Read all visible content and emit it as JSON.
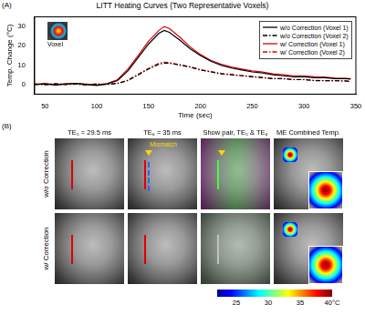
{
  "chart_data": {
    "type": "line",
    "panel_label": "(A)",
    "title": "LITT Heating Curves (Two Representative Voxels)",
    "x_label": "Time (sec)",
    "y_label": "Temp. Change (°C)",
    "inset_label": "Voxel",
    "xlim": [
      40,
      350
    ],
    "xticks": [
      50,
      100,
      150,
      200,
      250,
      300,
      350
    ],
    "ylim": [
      -5,
      35
    ],
    "yticks": [
      0,
      10,
      20,
      30
    ],
    "grid": false,
    "legend": "upper right",
    "x": [
      40,
      50,
      60,
      70,
      80,
      90,
      100,
      110,
      120,
      130,
      140,
      150,
      160,
      165,
      170,
      180,
      190,
      200,
      210,
      220,
      230,
      240,
      250,
      260,
      270,
      280,
      290,
      300,
      310,
      320,
      330,
      340,
      345
    ],
    "series": [
      {
        "name": "w/o Correction (Voxel 1)",
        "color": "#000000",
        "line_style": "solid",
        "values": [
          0,
          0.3,
          -0.3,
          0.2,
          0.5,
          0,
          -0.5,
          0.3,
          2,
          7,
          14,
          21,
          26.5,
          28,
          27,
          23,
          18.5,
          15,
          12,
          10,
          8.5,
          7.5,
          6.5,
          6,
          5,
          4.5,
          4,
          4,
          3.5,
          3.5,
          3,
          3,
          2.8
        ]
      },
      {
        "name": "w/o Correction (Voxel 2)",
        "color": "#000000",
        "line_style": "dashdot",
        "values": [
          0.2,
          -0.2,
          0.3,
          0,
          0.2,
          -0.3,
          0.2,
          0,
          0.5,
          2,
          5,
          8,
          10.5,
          11,
          11,
          10,
          9,
          7.5,
          6.5,
          5.5,
          5,
          4.5,
          4,
          3.5,
          3,
          3,
          2.5,
          2.5,
          2,
          2,
          2,
          1.8,
          1.5
        ]
      },
      {
        "name": "w/ Correction (Voxel 1)",
        "color": "#e00000",
        "line_style": "solid",
        "values": [
          0,
          0.5,
          -0.2,
          0.4,
          0.6,
          0.2,
          -0.3,
          0.5,
          2.5,
          8,
          15,
          22.5,
          28,
          30,
          29,
          24.5,
          19.5,
          15.5,
          12.5,
          10.5,
          9,
          8,
          7,
          6.5,
          5.5,
          5,
          4.5,
          4.5,
          4,
          3.8,
          3.3,
          3.2,
          3
        ]
      },
      {
        "name": "w/ Correction (Voxel 2)",
        "color": "#e00000",
        "line_style": "dashdot",
        "values": [
          0.3,
          0,
          0.4,
          0.1,
          0.3,
          -0.2,
          0.3,
          0.1,
          0.6,
          2.2,
          5.3,
          8.4,
          11,
          11.5,
          11.3,
          10.3,
          9.2,
          7.7,
          6.7,
          5.7,
          5.1,
          4.6,
          4.1,
          3.6,
          3.1,
          3,
          2.6,
          2.5,
          2.1,
          2,
          2,
          1.8,
          1.6
        ]
      }
    ]
  },
  "panel_b": {
    "panel_label": "(B)",
    "columns": [
      "TE₅ = 29.5 ms",
      "TE₆ = 35 ms",
      "Show pair, TE₅ & TE₆",
      "ME Combined Temp."
    ],
    "rows": [
      "w/o Correction",
      "w/ Correction"
    ],
    "annotation": "Mismatch",
    "colorbar": {
      "range": [
        22,
        40
      ],
      "ticks": [
        25,
        30,
        35,
        {
          "value": 40,
          "label": "40°C"
        }
      ]
    }
  }
}
